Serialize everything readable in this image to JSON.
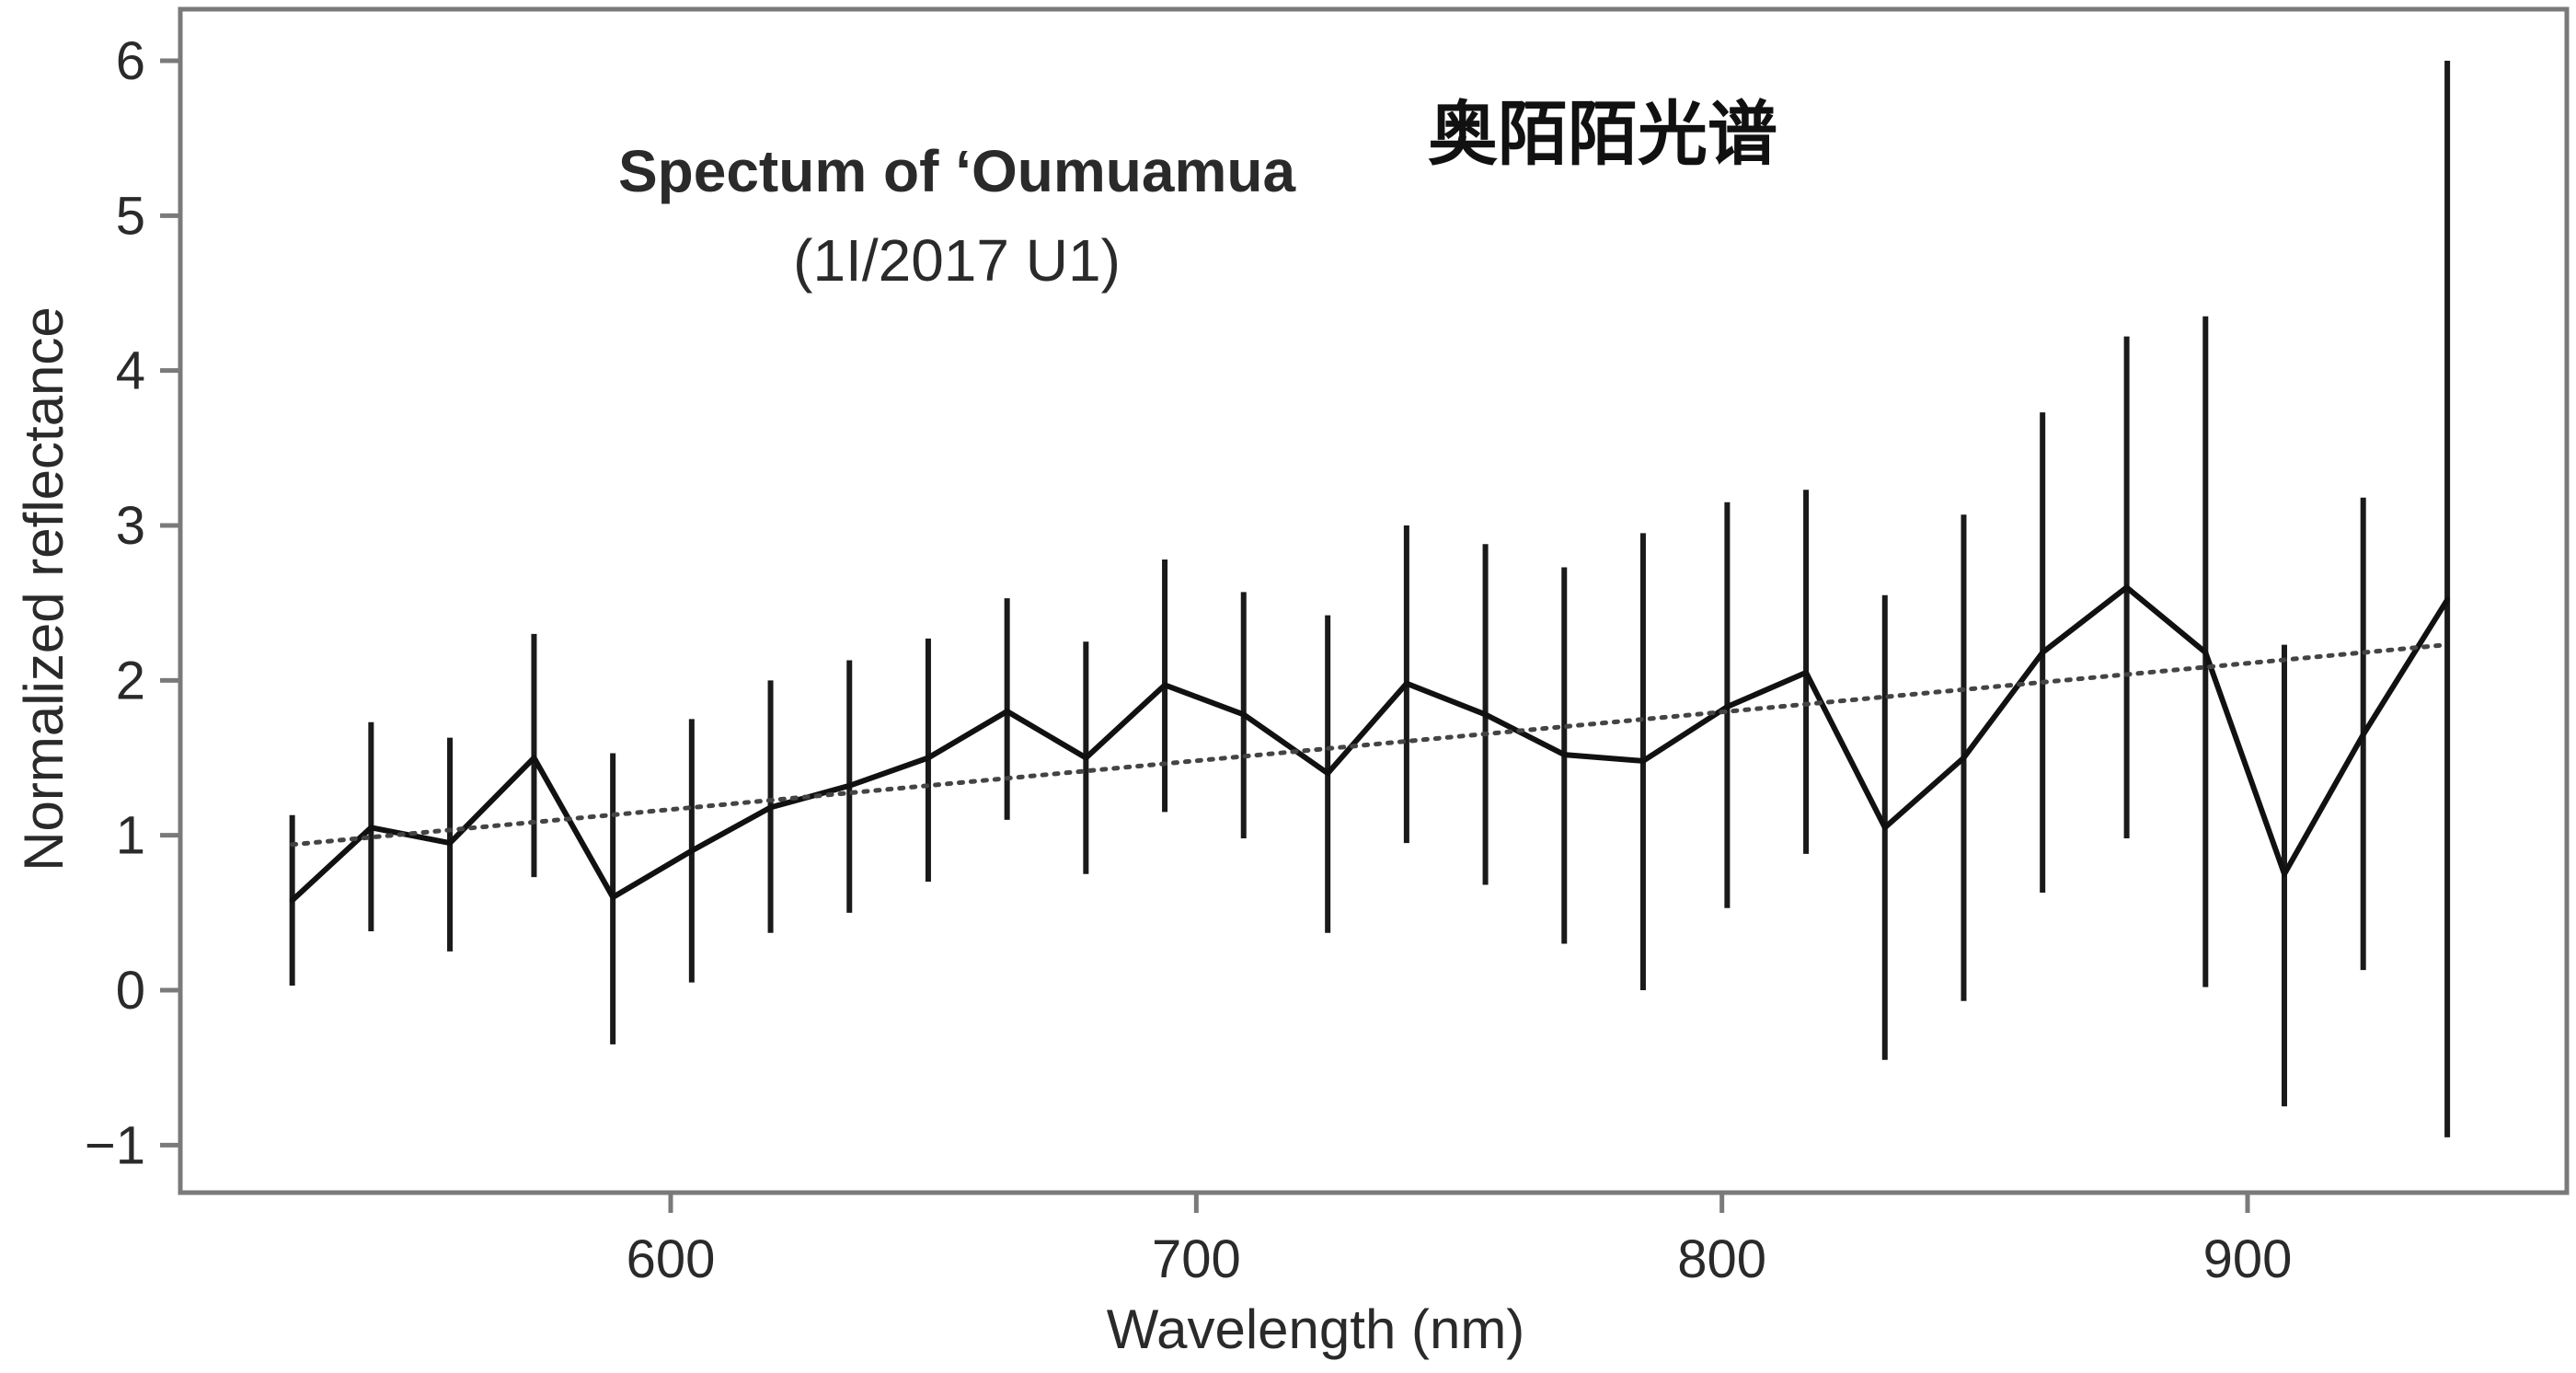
{
  "chart_data": {
    "type": "line",
    "title": "Spectum of ‘Oumuamua",
    "subtitle": "(1I/2017 U1)",
    "annotation": "奥陌陌光谱",
    "xlabel": "Wavelength  (nm)",
    "ylabel": "Normalized reflectance",
    "xlim": [
      510,
      960
    ],
    "ylim": [
      -1.3,
      6.3
    ],
    "x_ticks": [
      600,
      700,
      800,
      900
    ],
    "x_tick_labels": [
      "600",
      "700",
      "800",
      "900"
    ],
    "y_ticks": [
      -1,
      0,
      1,
      2,
      3,
      4,
      5,
      6
    ],
    "y_tick_labels": [
      "−1",
      "0",
      "1",
      "2",
      "3",
      "4",
      "5",
      "6"
    ],
    "grid": false,
    "legend": "none",
    "series": [
      {
        "style": "solid",
        "points": [
          {
            "x": 528,
            "y": 0.58,
            "lo": 0.03,
            "hi": 1.13
          },
          {
            "x": 543,
            "y": 1.05,
            "lo": 0.38,
            "hi": 1.73
          },
          {
            "x": 558,
            "y": 0.95,
            "lo": 0.25,
            "hi": 1.63
          },
          {
            "x": 574,
            "y": 1.5,
            "lo": 0.73,
            "hi": 2.3
          },
          {
            "x": 589,
            "y": 0.6,
            "lo": -0.35,
            "hi": 1.53
          },
          {
            "x": 604,
            "y": 0.9,
            "lo": 0.05,
            "hi": 1.75
          },
          {
            "x": 619,
            "y": 1.18,
            "lo": 0.37,
            "hi": 2.0
          },
          {
            "x": 634,
            "y": 1.32,
            "lo": 0.5,
            "hi": 2.13
          },
          {
            "x": 649,
            "y": 1.5,
            "lo": 0.7,
            "hi": 2.27
          },
          {
            "x": 664,
            "y": 1.8,
            "lo": 1.1,
            "hi": 2.53
          },
          {
            "x": 679,
            "y": 1.5,
            "lo": 0.75,
            "hi": 2.25
          },
          {
            "x": 694,
            "y": 1.97,
            "lo": 1.15,
            "hi": 2.78
          },
          {
            "x": 709,
            "y": 1.78,
            "lo": 0.98,
            "hi": 2.57
          },
          {
            "x": 725,
            "y": 1.4,
            "lo": 0.37,
            "hi": 2.42
          },
          {
            "x": 740,
            "y": 1.98,
            "lo": 0.95,
            "hi": 3.0
          },
          {
            "x": 755,
            "y": 1.78,
            "lo": 0.68,
            "hi": 2.88
          },
          {
            "x": 770,
            "y": 1.52,
            "lo": 0.3,
            "hi": 2.73
          },
          {
            "x": 785,
            "y": 1.48,
            "lo": 0.0,
            "hi": 2.95
          },
          {
            "x": 801,
            "y": 1.83,
            "lo": 0.53,
            "hi": 3.15
          },
          {
            "x": 816,
            "y": 2.05,
            "lo": 0.88,
            "hi": 3.23
          },
          {
            "x": 831,
            "y": 1.05,
            "lo": -0.45,
            "hi": 2.55
          },
          {
            "x": 846,
            "y": 1.5,
            "lo": -0.07,
            "hi": 3.07
          },
          {
            "x": 861,
            "y": 2.18,
            "lo": 0.63,
            "hi": 3.73
          },
          {
            "x": 877,
            "y": 2.6,
            "lo": 0.98,
            "hi": 4.22
          },
          {
            "x": 892,
            "y": 2.18,
            "lo": 0.02,
            "hi": 4.35
          },
          {
            "x": 907,
            "y": 0.75,
            "lo": -0.75,
            "hi": 2.23
          },
          {
            "x": 922,
            "y": 1.65,
            "lo": 0.13,
            "hi": 3.18
          },
          {
            "x": 938,
            "y": 2.52,
            "lo": -0.95,
            "hi": 6.0
          }
        ]
      },
      {
        "style": "dotted",
        "points": [
          {
            "x": 528,
            "y": 0.94
          },
          {
            "x": 938,
            "y": 2.23
          }
        ]
      }
    ]
  }
}
